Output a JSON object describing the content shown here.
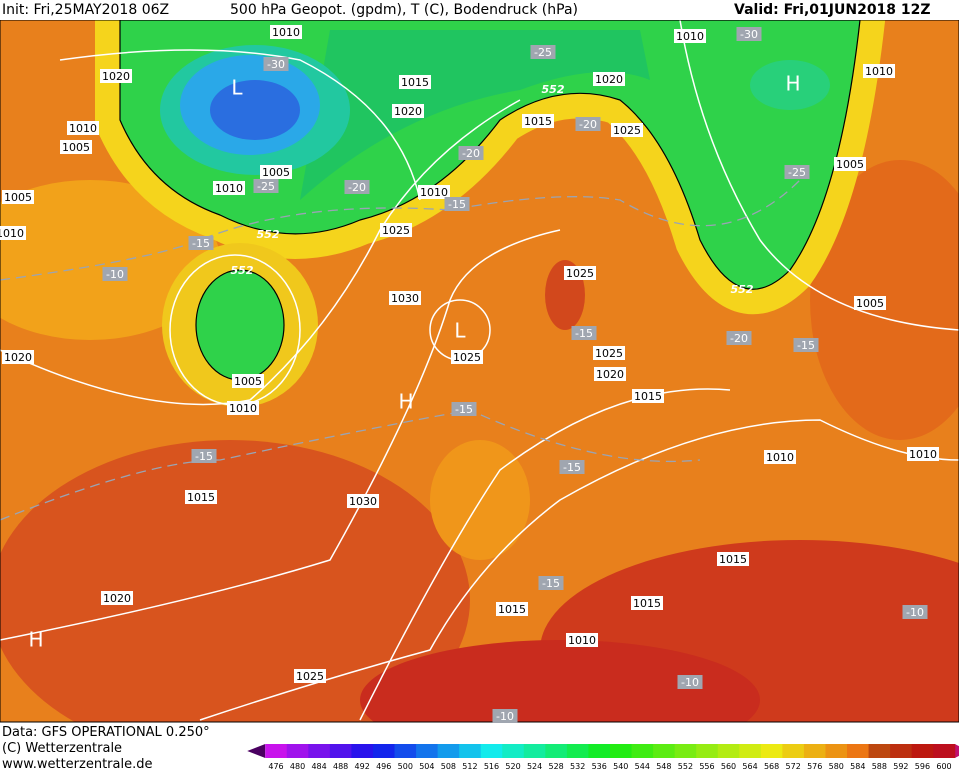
{
  "header": {
    "init": "Init: Fri,25MAY2018 06Z",
    "title": "500 hPa Geopot. (gpdm), T (C), Bodendruck (hPa)",
    "valid": "Valid: Fri,01JUN2018 12Z"
  },
  "footer": {
    "data": "Data: GFS OPERATIONAL 0.250°",
    "copyright": "(C) Wetterzentrale",
    "url": "www.wetterzentrale.de"
  },
  "colorbar": {
    "ticks": [
      476,
      480,
      484,
      488,
      492,
      496,
      500,
      504,
      508,
      512,
      516,
      520,
      524,
      528,
      532,
      536,
      540,
      544,
      548,
      552,
      556,
      560,
      564,
      568,
      572,
      576,
      580,
      584,
      588,
      592,
      596,
      600
    ]
  },
  "labels": {
    "pressure": [
      "1010",
      "1020",
      "1010",
      "1005",
      "1005",
      "1010",
      "1015",
      "1020",
      "1010",
      "1025",
      "1005",
      "1010",
      "1030",
      "1025",
      "1025",
      "1025",
      "1020",
      "1015",
      "1015",
      "1020",
      "1025",
      "1010",
      "1010",
      "1005",
      "1005",
      "1005",
      "1010",
      "1015",
      "1030",
      "1020",
      "1025",
      "1010",
      "1010",
      "1015",
      "1015",
      "1015",
      "1010",
      "1020"
    ],
    "temperature": [
      "-30",
      "-25",
      "-25",
      "-30",
      "-20",
      "-20",
      "-20",
      "-15",
      "-15",
      "-10",
      "-15",
      "-20",
      "-15",
      "-25",
      "-15",
      "-15",
      "-15",
      "-15",
      "-10",
      "-10",
      "-10"
    ],
    "geopotential": [
      "552",
      "552",
      "552",
      "552"
    ],
    "centers": [
      "L",
      "H",
      "L",
      "H",
      "H"
    ]
  }
}
